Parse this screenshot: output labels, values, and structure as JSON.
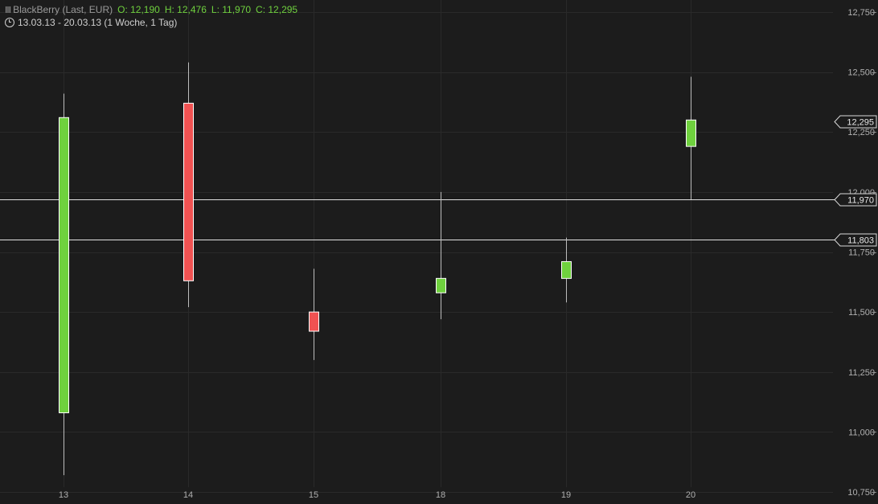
{
  "header": {
    "symbol_icon": "candlestick-icon",
    "instrument": "BlackBerry (Last, EUR)",
    "open": "O: 12,190",
    "high": "H: 12,476",
    "low": "L: 11,970",
    "close": "C: 12,295",
    "clock_icon": "clock-icon",
    "period": "13.03.13 - 20.03.13 (1 Woche, 1 Tag)"
  },
  "colors": {
    "background": "#1c1c1c",
    "up": "#6fd13e",
    "down": "#f05252",
    "grid": "#2a2a2a",
    "text": "#cfcfcf"
  },
  "chart_data": {
    "type": "candlestick",
    "categories": [
      "13",
      "14",
      "15",
      "18",
      "19",
      "20"
    ],
    "candles": [
      {
        "date": "13",
        "open": 11.08,
        "high": 12.41,
        "low": 10.82,
        "close": 12.31
      },
      {
        "date": "14",
        "open": 12.37,
        "high": 12.54,
        "low": 11.52,
        "close": 11.63
      },
      {
        "date": "15",
        "open": 11.5,
        "high": 11.68,
        "low": 11.3,
        "close": 11.42
      },
      {
        "date": "18",
        "open": 11.58,
        "high": 12.0,
        "low": 11.47,
        "close": 11.64
      },
      {
        "date": "19",
        "open": 11.64,
        "high": 11.81,
        "low": 11.54,
        "close": 11.71
      },
      {
        "date": "20",
        "open": 12.19,
        "high": 12.48,
        "low": 11.97,
        "close": 12.3
      }
    ],
    "ylim": [
      10.7,
      12.8
    ],
    "yticks": [
      10.75,
      11.0,
      11.25,
      11.5,
      11.75,
      12.0,
      12.25,
      12.5,
      12.75
    ],
    "ytick_labels": [
      "10,750",
      "11,000",
      "11,250",
      "11,500",
      "11,750",
      "12,000",
      "12,250",
      "12,500",
      "12,750"
    ],
    "hlines": [
      {
        "value": 11.97,
        "label": "11,970"
      },
      {
        "value": 11.803,
        "label": "11,803"
      }
    ],
    "last_price": {
      "value": 12.295,
      "label": "12,295"
    },
    "grid": true,
    "axis_position": "right"
  }
}
